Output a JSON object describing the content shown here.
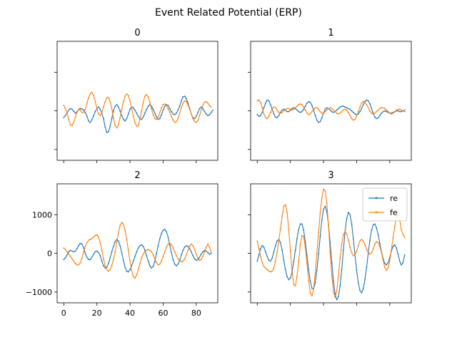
{
  "chart_data": {
    "type": "line",
    "title": "Event Related Potential (ERP)",
    "xlim": [
      -4,
      93
    ],
    "ylim": [
      -1280,
      1800
    ],
    "x_ticks": [
      0,
      20,
      40,
      60,
      80
    ],
    "y_ticks": [
      -1000,
      0,
      1000
    ],
    "y_tick_labels": [
      "−1000",
      "0",
      "1000"
    ],
    "legend": {
      "placement": "top-right",
      "panel": 3
    },
    "colors": {
      "re": "#1f77b4",
      "fe": "#ff7f0e"
    },
    "panels": [
      {
        "title": "0",
        "series": [
          {
            "name": "re",
            "values": [
              -170,
              -120,
              -60,
              20,
              60,
              40,
              -10,
              -60,
              -20,
              30,
              60,
              50,
              20,
              -40,
              -140,
              -260,
              -300,
              -230,
              -130,
              -20,
              60,
              100,
              40,
              -60,
              -200,
              -420,
              -560,
              -540,
              -400,
              -200,
              0,
              120,
              160,
              100,
              0,
              -120,
              -220,
              -260,
              -200,
              -80,
              40,
              100,
              80,
              20,
              -60,
              -140,
              -200,
              -220,
              -160,
              -60,
              40,
              120,
              160,
              120,
              40,
              -60,
              -160,
              -220,
              -200,
              -100,
              20,
              120,
              160,
              140,
              60,
              -20,
              -80,
              -100,
              -60,
              20,
              120,
              260,
              360,
              380,
              320,
              200,
              60,
              -80,
              -180,
              -200,
              -140,
              -40,
              60,
              100,
              60,
              -20,
              -80,
              -120,
              -100,
              -40,
              20
            ]
          },
          {
            "name": "fe",
            "values": [
              140,
              60,
              -60,
              -220,
              -360,
              -380,
              -300,
              -160,
              -40,
              40,
              20,
              -40,
              -40,
              40,
              200,
              340,
              440,
              480,
              400,
              240,
              60,
              -80,
              -120,
              -40,
              100,
              240,
              340,
              340,
              240,
              60,
              -180,
              -380,
              -440,
              -360,
              -180,
              40,
              240,
              380,
              440,
              400,
              260,
              60,
              -140,
              -300,
              -400,
              -380,
              -220,
              0,
              220,
              380,
              420,
              360,
              220,
              60,
              -100,
              -200,
              -220,
              -160,
              -40,
              80,
              160,
              180,
              140,
              60,
              -40,
              -140,
              -240,
              -300,
              -280,
              -200,
              -60,
              80,
              200,
              260,
              240,
              160,
              40,
              -80,
              -200,
              -280,
              -300,
              -240,
              -120,
              20,
              140,
              220,
              240,
              200,
              140,
              100
            ]
          }
        ]
      },
      {
        "title": "1",
        "series": [
          {
            "name": "re",
            "values": [
              -100,
              -140,
              -120,
              -40,
              80,
              200,
              280,
              260,
              160,
              40,
              -80,
              -160,
              -180,
              -120,
              -40,
              20,
              40,
              20,
              -20,
              -20,
              20,
              60,
              80,
              60,
              20,
              -20,
              -40,
              -20,
              40,
              120,
              200,
              240,
              220,
              140,
              20,
              -120,
              -240,
              -300,
              -280,
              -180,
              -60,
              40,
              80,
              60,
              20,
              -20,
              -40,
              -20,
              20,
              60,
              100,
              120,
              120,
              100,
              80,
              60,
              40,
              0,
              -40,
              -80,
              -100,
              -80,
              -20,
              60,
              160,
              240,
              280,
              260,
              180,
              60,
              -60,
              -160,
              -200,
              -180,
              -120,
              -60,
              -20,
              0,
              -20,
              -40,
              -60,
              -60,
              -40,
              -20,
              0,
              0,
              -20,
              -20,
              0,
              20
            ]
          },
          {
            "name": "fe",
            "values": [
              260,
              280,
              220,
              80,
              -80,
              -180,
              -200,
              -140,
              -40,
              60,
              100,
              80,
              20,
              -40,
              -60,
              -40,
              0,
              40,
              60,
              60,
              40,
              20,
              40,
              80,
              120,
              160,
              180,
              160,
              100,
              20,
              -60,
              -100,
              -80,
              -20,
              40,
              80,
              80,
              40,
              -20,
              -60,
              -60,
              -20,
              20,
              60,
              80,
              60,
              20,
              -20,
              -60,
              -80,
              -60,
              -20,
              20,
              40,
              20,
              -40,
              -120,
              -200,
              -240,
              -220,
              -140,
              -20,
              100,
              200,
              240,
              220,
              160,
              80,
              0,
              -60,
              -80,
              -60,
              -20,
              20,
              60,
              80,
              80,
              60,
              20,
              -20,
              -60,
              -80,
              -60,
              -20,
              20,
              40,
              40,
              20,
              0,
              -20
            ]
          }
        ]
      },
      {
        "title": "2",
        "series": [
          {
            "name": "re",
            "values": [
              -160,
              -120,
              -40,
              40,
              80,
              60,
              40,
              60,
              120,
              200,
              260,
              240,
              140,
              0,
              -100,
              -160,
              -160,
              -100,
              -20,
              40,
              60,
              20,
              -60,
              -200,
              -320,
              -380,
              -360,
              -260,
              -120,
              40,
              180,
              300,
              360,
              320,
              200,
              20,
              -180,
              -360,
              -460,
              -480,
              -420,
              -320,
              -200,
              -80,
              40,
              140,
              200,
              220,
              180,
              80,
              -60,
              -200,
              -320,
              -380,
              -340,
              -200,
              0,
              200,
              380,
              520,
              600,
              620,
              560,
              420,
              220,
              20,
              -160,
              -280,
              -320,
              -280,
              -180,
              -40,
              80,
              160,
              200,
              180,
              120,
              40,
              -60,
              -140,
              -180,
              -160,
              -100,
              -20,
              40,
              80,
              60,
              20,
              -20,
              0
            ]
          },
          {
            "name": "fe",
            "values": [
              140,
              100,
              40,
              -20,
              -80,
              -140,
              -200,
              -260,
              -300,
              -300,
              -240,
              -120,
              40,
              180,
              280,
              340,
              360,
              380,
              420,
              460,
              480,
              420,
              280,
              80,
              -140,
              -320,
              -420,
              -460,
              -420,
              -320,
              -160,
              40,
              280,
              520,
              720,
              800,
              760,
              600,
              360,
              80,
              -200,
              -440,
              -600,
              -640,
              -560,
              -420,
              -260,
              -120,
              -20,
              40,
              80,
              100,
              80,
              40,
              -40,
              -140,
              -240,
              -300,
              -280,
              -200,
              -80,
              40,
              160,
              240,
              260,
              220,
              140,
              40,
              -60,
              -140,
              -200,
              -220,
              -200,
              -140,
              -40,
              80,
              180,
              240,
              200,
              100,
              -20,
              -120,
              -180,
              -160,
              -80,
              40,
              160,
              240,
              160,
              20
            ]
          }
        ]
      },
      {
        "title": "3",
        "series": [
          {
            "name": "re",
            "values": [
              -200,
              -40,
              120,
              200,
              160,
              40,
              -80,
              -180,
              -200,
              -120,
              40,
              200,
              320,
              360,
              280,
              80,
              -180,
              -420,
              -600,
              -680,
              -640,
              -480,
              -220,
              80,
              380,
              620,
              760,
              760,
              600,
              300,
              -60,
              -420,
              -720,
              -900,
              -920,
              -760,
              -440,
              -20,
              440,
              860,
              1140,
              1220,
              1080,
              740,
              280,
              -240,
              -720,
              -1060,
              -1200,
              -1120,
              -840,
              -420,
              80,
              560,
              900,
              1060,
              1000,
              760,
              380,
              -40,
              -440,
              -760,
              -960,
              -1020,
              -920,
              -680,
              -360,
              0,
              340,
              600,
              740,
              760,
              660,
              480,
              260,
              40,
              -140,
              -260,
              -300,
              -240,
              -100,
              60,
              180,
              220,
              140,
              -20,
              -200,
              -300,
              -240,
              -40
            ]
          },
          {
            "name": "fe",
            "values": [
              320,
              120,
              -80,
              -240,
              -340,
              -380,
              -420,
              -460,
              -480,
              -460,
              -380,
              -200,
              40,
              320,
              640,
              960,
              1220,
              1260,
              1060,
              620,
              60,
              -460,
              -800,
              -840,
              -600,
              -200,
              220,
              460,
              440,
              160,
              -260,
              -700,
              -1020,
              -1100,
              -920,
              -520,
              0,
              540,
              1040,
              1440,
              1660,
              1620,
              1300,
              720,
              40,
              -580,
              -1000,
              -1140,
              -960,
              -580,
              -140,
              240,
              480,
              560,
              500,
              340,
              160,
              20,
              -60,
              -40,
              60,
              200,
              320,
              360,
              320,
              220,
              100,
              20,
              -20,
              20,
              120,
              240,
              300,
              280,
              180,
              20,
              -180,
              -360,
              -440,
              -380,
              -180,
              100,
              400,
              700,
              920,
              1000,
              860,
              620,
              480,
              420
            ]
          }
        ]
      }
    ]
  }
}
